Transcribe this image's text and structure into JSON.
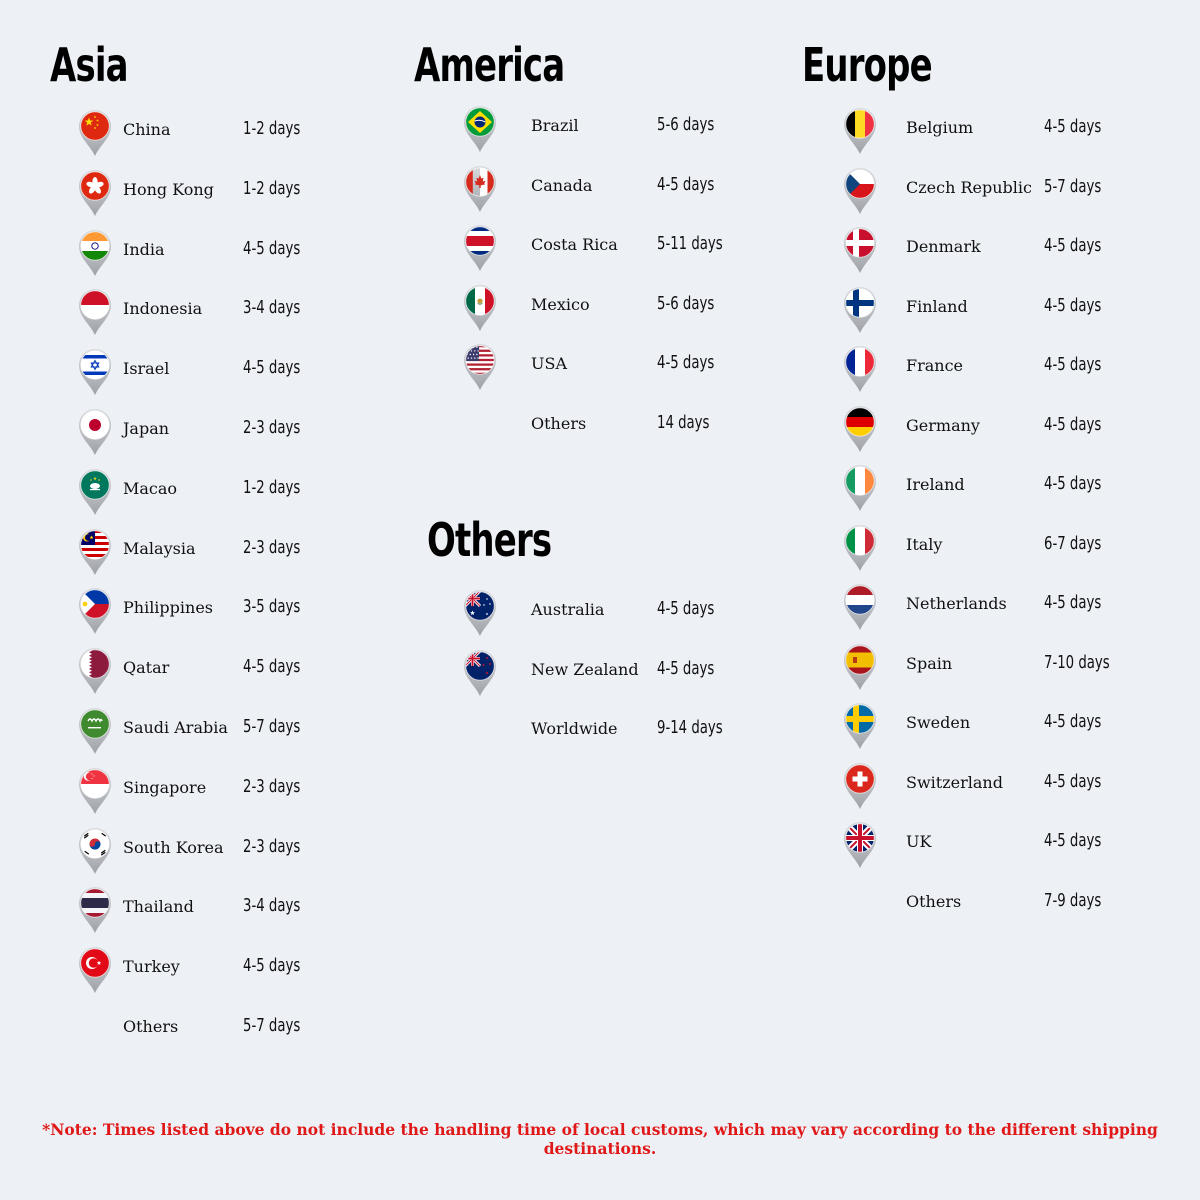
{
  "regions": {
    "asia": {
      "title": "Asia",
      "items": [
        {
          "country": "China",
          "days": "1-2 days",
          "flag": "china-flag-icon"
        },
        {
          "country": "Hong Kong",
          "days": "1-2 days",
          "flag": "hong-kong-flag-icon"
        },
        {
          "country": "India",
          "days": "4-5 days",
          "flag": "india-flag-icon"
        },
        {
          "country": "Indonesia",
          "days": "3-4 days",
          "flag": "indonesia-flag-icon"
        },
        {
          "country": "Israel",
          "days": "4-5 days",
          "flag": "israel-flag-icon"
        },
        {
          "country": "Japan",
          "days": "2-3 days",
          "flag": "japan-flag-icon"
        },
        {
          "country": "Macao",
          "days": "1-2 days",
          "flag": "macao-flag-icon"
        },
        {
          "country": "Malaysia",
          "days": "2-3 days",
          "flag": "malaysia-flag-icon"
        },
        {
          "country": "Philippines",
          "days": "3-5 days",
          "flag": "philippines-flag-icon"
        },
        {
          "country": "Qatar",
          "days": "4-5 days",
          "flag": "qatar-flag-icon"
        },
        {
          "country": "Saudi Arabia",
          "days": "5-7 days",
          "flag": "saudi-arabia-flag-icon"
        },
        {
          "country": "Singapore",
          "days": "2-3 days",
          "flag": "singapore-flag-icon"
        },
        {
          "country": "South Korea",
          "days": "2-3 days",
          "flag": "south-korea-flag-icon"
        },
        {
          "country": "Thailand",
          "days": "3-4 days",
          "flag": "thailand-flag-icon"
        },
        {
          "country": "Turkey",
          "days": "4-5 days",
          "flag": "turkey-flag-icon"
        },
        {
          "country": "Others",
          "days": "5-7 days"
        }
      ]
    },
    "america": {
      "title": "America",
      "items": [
        {
          "country": "Brazil",
          "days": "5-6 days",
          "flag": "brazil-flag-icon"
        },
        {
          "country": "Canada",
          "days": "4-5 days",
          "flag": "canada-flag-icon"
        },
        {
          "country": "Costa Rica",
          "days": "5-11 days",
          "flag": "costa-rica-flag-icon"
        },
        {
          "country": "Mexico",
          "days": "5-6 days",
          "flag": "mexico-flag-icon"
        },
        {
          "country": "USA",
          "days": "4-5 days",
          "flag": "usa-flag-icon"
        },
        {
          "country": "Others",
          "days": "14 days"
        }
      ]
    },
    "others": {
      "title": "Others",
      "items": [
        {
          "country": "Australia",
          "days": "4-5 days",
          "flag": "australia-flag-icon"
        },
        {
          "country": "New Zealand",
          "days": "4-5 days",
          "flag": "new-zealand-flag-icon"
        },
        {
          "country": "Worldwide",
          "days": "9-14 days"
        }
      ]
    },
    "europe": {
      "title": "Europe",
      "items": [
        {
          "country": "Belgium",
          "days": "4-5 days",
          "flag": "belgium-flag-icon"
        },
        {
          "country": "Czech Republic",
          "days": "5-7 days",
          "flag": "czech-republic-flag-icon"
        },
        {
          "country": "Denmark",
          "days": "4-5 days",
          "flag": "denmark-flag-icon"
        },
        {
          "country": "Finland",
          "days": "4-5 days",
          "flag": "finland-flag-icon"
        },
        {
          "country": "France",
          "days": "4-5 days",
          "flag": "france-flag-icon"
        },
        {
          "country": "Germany",
          "days": "4-5 days",
          "flag": "germany-flag-icon"
        },
        {
          "country": "Ireland",
          "days": "4-5 days",
          "flag": "ireland-flag-icon"
        },
        {
          "country": "Italy",
          "days": "6-7 days",
          "flag": "italy-flag-icon"
        },
        {
          "country": "Netherlands",
          "days": "4-5 days",
          "flag": "netherlands-flag-icon"
        },
        {
          "country": "Spain",
          "days": "7-10 days",
          "flag": "spain-flag-icon"
        },
        {
          "country": "Sweden",
          "days": "4-5 days",
          "flag": "sweden-flag-icon"
        },
        {
          "country": "Switzerland",
          "days": "4-5 days",
          "flag": "switzerland-flag-icon"
        },
        {
          "country": "UK",
          "days": "4-5 days",
          "flag": "uk-flag-icon"
        },
        {
          "country": "Others",
          "days": "7-9 days"
        }
      ]
    }
  },
  "note": "*Note: Times listed above do not include the handling time of local customs, which may vary according to the different shipping destinations.",
  "colors": {
    "background": "#edf0f5",
    "note": "#e01818",
    "pin_rim": "#b9bcc1"
  }
}
